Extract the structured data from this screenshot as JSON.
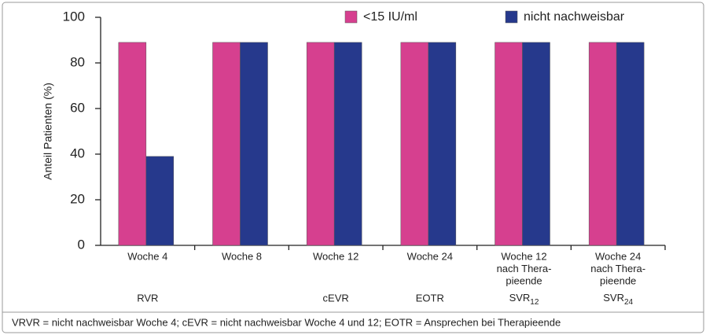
{
  "chart_data": {
    "type": "bar",
    "categories": [
      [
        "Woche 4"
      ],
      [
        "Woche 8"
      ],
      [
        "Woche 12"
      ],
      [
        "Woche 24"
      ],
      [
        "Woche 12",
        "nach Thera-",
        "pieende"
      ],
      [
        "Woche 24",
        "nach Thera-",
        "pieende"
      ]
    ],
    "group_labels": [
      "RVR",
      null,
      "cEVR",
      "EOTR",
      {
        "text": "SVR",
        "sub": "12"
      },
      {
        "text": "SVR",
        "sub": "24"
      }
    ],
    "series": [
      {
        "name": "<15 IU/ml",
        "color": "#d6408f",
        "values": [
          89,
          89,
          89,
          89,
          89,
          89
        ]
      },
      {
        "name": "nicht nachweisbar",
        "color": "#26398c",
        "values": [
          39,
          89,
          89,
          89,
          89,
          89
        ]
      }
    ],
    "ylabel": "Anteil Patienten (%)",
    "ylim": [
      0,
      100
    ],
    "yticks": [
      0,
      20,
      40,
      60,
      80,
      100
    ],
    "footnote": "VRVR = nicht nachweisbar Woche 4; cEVR = nicht nachweisbar Woche 4 und 12; EOTR = Ansprechen bei Therapieende"
  }
}
